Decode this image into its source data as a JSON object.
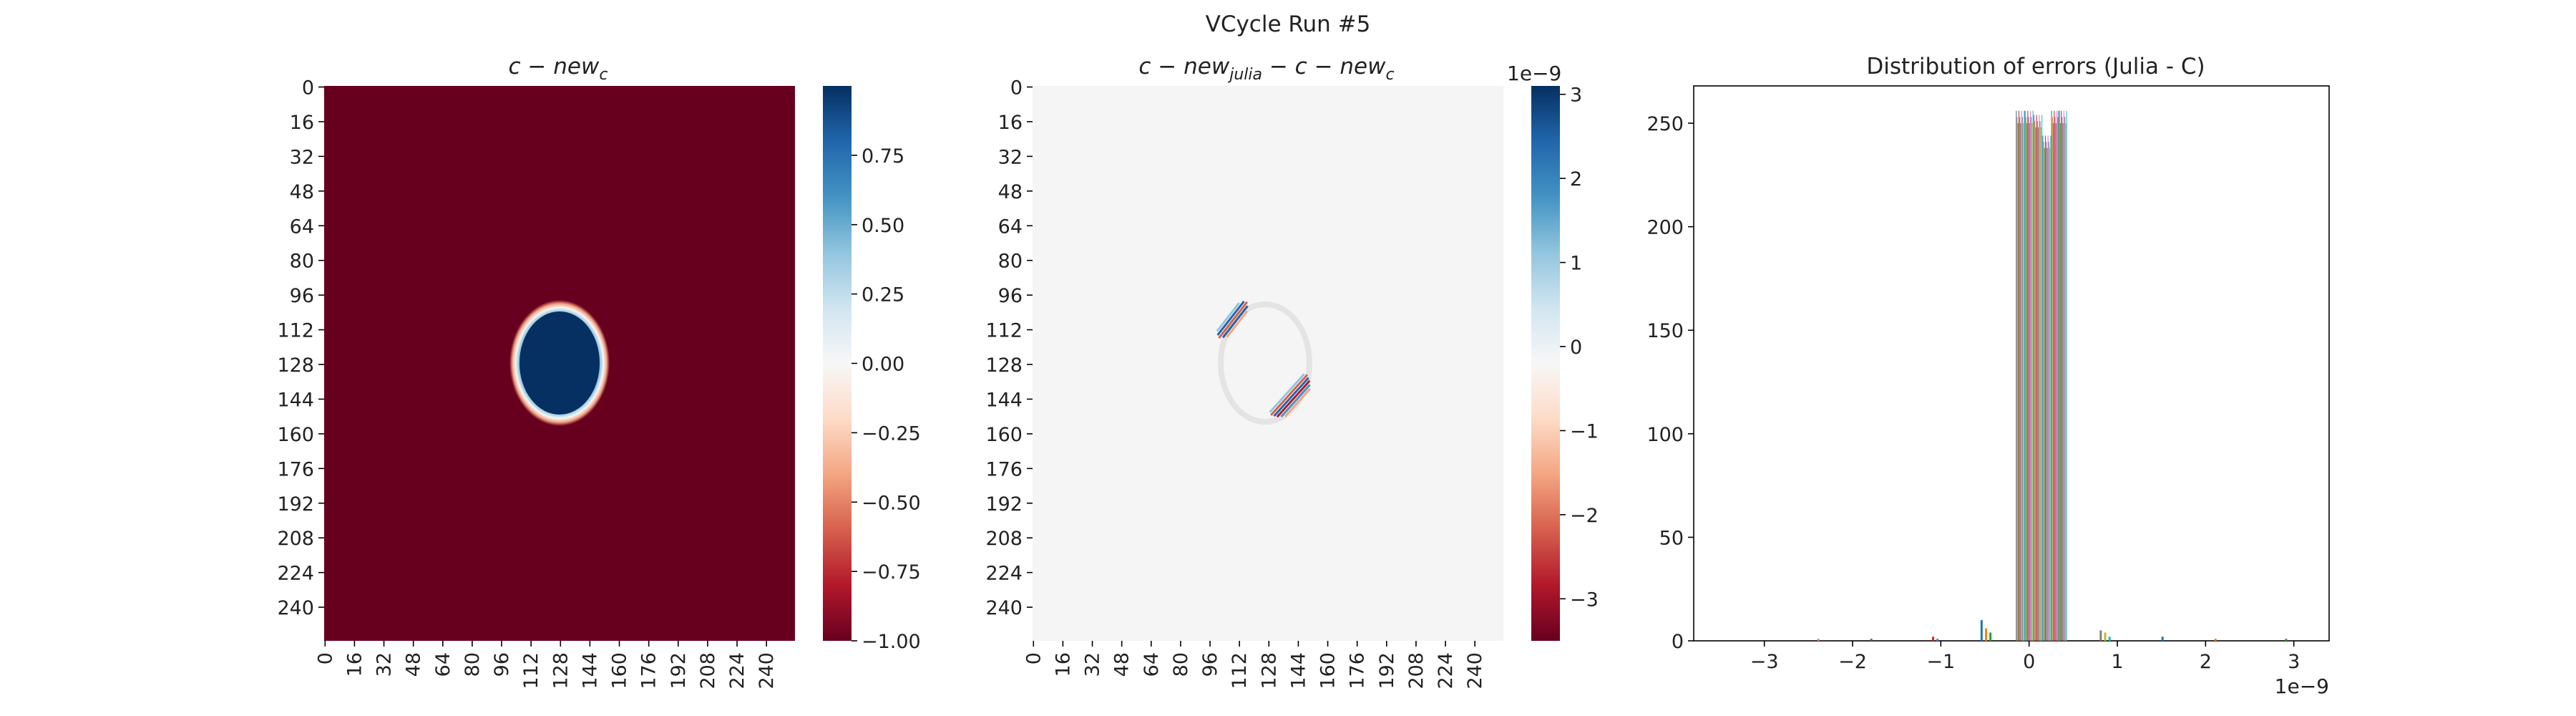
{
  "figure": {
    "suptitle": "VCycle Run #5"
  },
  "chart_data": [
    {
      "type": "heatmap",
      "title_main": "c − new",
      "title_sub": "c",
      "y_ticks": [
        "0",
        "16",
        "32",
        "48",
        "64",
        "80",
        "96",
        "112",
        "128",
        "144",
        "160",
        "176",
        "192",
        "208",
        "224",
        "240"
      ],
      "x_ticks": [
        "0",
        "16",
        "32",
        "48",
        "64",
        "80",
        "96",
        "112",
        "128",
        "144",
        "160",
        "176",
        "192",
        "208",
        "224",
        "240"
      ],
      "grid_size": 256,
      "colormap": "RdBu",
      "colorbar": {
        "min": -1.0,
        "max": 1.0,
        "ticks": [
          "0.75",
          "0.50",
          "0.25",
          "0.00",
          "−0.25",
          "−0.50",
          "−0.75",
          "−1.00"
        ],
        "tick_values": [
          0.75,
          0.5,
          0.25,
          0,
          -0.25,
          -0.5,
          -0.75,
          -1.0
        ]
      },
      "feature": {
        "shape": "ellipse",
        "center": [
          128,
          128
        ],
        "radius_x": 25,
        "radius_y": 30,
        "inside_value": 1.0,
        "outside_value": -1.0
      }
    },
    {
      "type": "heatmap",
      "title_main": "c − new",
      "title_sub": "julia",
      "title_tail": " − c − new",
      "title_sub2": "c",
      "y_ticks": [
        "0",
        "16",
        "32",
        "48",
        "64",
        "80",
        "96",
        "112",
        "128",
        "144",
        "160",
        "176",
        "192",
        "208",
        "224",
        "240"
      ],
      "x_ticks": [
        "0",
        "16",
        "32",
        "48",
        "64",
        "80",
        "96",
        "112",
        "128",
        "144",
        "160",
        "176",
        "192",
        "208",
        "224",
        "240"
      ],
      "grid_size": 256,
      "colormap": "RdBu",
      "colorbar": {
        "min": -3.5,
        "max": 3.1,
        "exponent_label": "1e−9",
        "ticks": [
          "3",
          "2",
          "1",
          "0",
          "−1",
          "−2",
          "−3"
        ],
        "tick_values": [
          3,
          2,
          1,
          0,
          -1,
          -2,
          -3
        ]
      }
    },
    {
      "type": "bar",
      "title": "Distribution of errors (Julia - C)",
      "x_ticks": [
        "−3",
        "−2",
        "−1",
        "0",
        "1",
        "2",
        "3"
      ],
      "x_tick_values": [
        -3,
        -2,
        -1,
        0,
        1,
        2,
        3
      ],
      "x_exponent_label": "1e−9",
      "y_ticks": [
        "0",
        "50",
        "100",
        "150",
        "200",
        "250"
      ],
      "y_tick_values": [
        0,
        50,
        100,
        150,
        200,
        250
      ],
      "xlim": [
        -3.8,
        3.4
      ],
      "ylim": [
        0,
        268
      ],
      "bins_center": [
        {
          "x": -0.1,
          "y": 256
        },
        {
          "x": 0.0,
          "y": 256
        },
        {
          "x": 0.1,
          "y": 254
        },
        {
          "x": 0.2,
          "y": 244
        },
        {
          "x": 0.3,
          "y": 256
        },
        {
          "x": 0.38,
          "y": 256
        }
      ],
      "bins_tails": [
        {
          "x": -0.55,
          "y": 10
        },
        {
          "x": -0.5,
          "y": 6
        },
        {
          "x": -0.45,
          "y": 4
        },
        {
          "x": -1.1,
          "y": 2
        },
        {
          "x": -1.05,
          "y": 1
        },
        {
          "x": -1.8,
          "y": 1
        },
        {
          "x": -2.4,
          "y": 1
        },
        {
          "x": 0.8,
          "y": 5
        },
        {
          "x": 0.85,
          "y": 4
        },
        {
          "x": 0.9,
          "y": 2
        },
        {
          "x": 1.5,
          "y": 2
        },
        {
          "x": 2.1,
          "y": 1
        },
        {
          "x": 2.9,
          "y": 1
        }
      ],
      "colors": [
        "#1f77b4",
        "#ff7f0e",
        "#2ca02c",
        "#d62728",
        "#9467bd",
        "#8c564b",
        "#e377c2",
        "#7f7f7f",
        "#bcbd22",
        "#17becf"
      ]
    }
  ]
}
